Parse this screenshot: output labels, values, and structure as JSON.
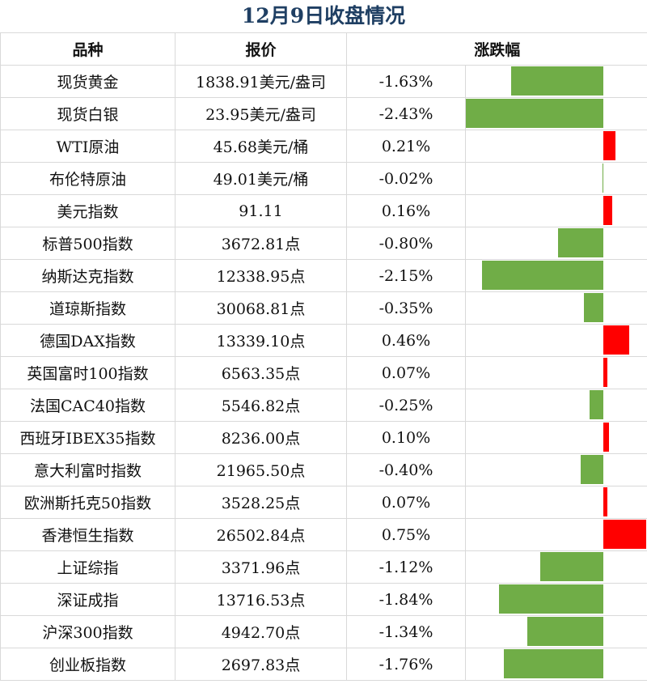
{
  "title": "12月9日收盘情况",
  "headers": [
    "品种",
    "报价",
    "涨跌幅",
    ""
  ],
  "colors": {
    "negative": "#70ad47",
    "positive": "#ff0000",
    "title": "#1f3f63"
  },
  "chart_data": {
    "type": "table",
    "columns": [
      "品种",
      "报价",
      "涨跌幅"
    ],
    "rows": [
      {
        "name": "现货黄金",
        "price": "1838.91美元/盎司",
        "change_label": "-1.63%",
        "change": -1.63
      },
      {
        "name": "现货白银",
        "price": "23.95美元/盎司",
        "change_label": "-2.43%",
        "change": -2.43
      },
      {
        "name": "WTI原油",
        "price": "45.68美元/桶",
        "change_label": "0.21%",
        "change": 0.21
      },
      {
        "name": "布伦特原油",
        "price": "49.01美元/桶",
        "change_label": "-0.02%",
        "change": -0.02
      },
      {
        "name": "美元指数",
        "price": "91.11",
        "change_label": "0.16%",
        "change": 0.16
      },
      {
        "name": "标普500指数",
        "price": "3672.81点",
        "change_label": "-0.80%",
        "change": -0.8
      },
      {
        "name": "纳斯达克指数",
        "price": "12338.95点",
        "change_label": "-2.15%",
        "change": -2.15
      },
      {
        "name": "道琼斯指数",
        "price": "30068.81点",
        "change_label": "-0.35%",
        "change": -0.35
      },
      {
        "name": "德国DAX指数",
        "price": "13339.10点",
        "change_label": "0.46%",
        "change": 0.46
      },
      {
        "name": "英国富时100指数",
        "price": "6563.35点",
        "change_label": "0.07%",
        "change": 0.07
      },
      {
        "name": "法国CAC40指数",
        "price": "5546.82点",
        "change_label": "-0.25%",
        "change": -0.25
      },
      {
        "name": "西班牙IBEX35指数",
        "price": "8236.00点",
        "change_label": "0.10%",
        "change": 0.1
      },
      {
        "name": "意大利富时指数",
        "price": "21965.50点",
        "change_label": "-0.40%",
        "change": -0.4
      },
      {
        "name": "欧洲斯托克50指数",
        "price": "3528.25点",
        "change_label": "0.07%",
        "change": 0.07
      },
      {
        "name": "香港恒生指数",
        "price": "26502.84点",
        "change_label": "0.75%",
        "change": 0.75
      },
      {
        "name": "上证综指",
        "price": "3371.96点",
        "change_label": "-1.12%",
        "change": -1.12
      },
      {
        "name": "深证成指",
        "price": "13716.53点",
        "change_label": "-1.84%",
        "change": -1.84
      },
      {
        "name": "沪深300指数",
        "price": "4942.70点",
        "change_label": "-1.34%",
        "change": -1.34
      },
      {
        "name": "创业板指数",
        "price": "2697.83点",
        "change_label": "-1.76%",
        "change": -1.76
      }
    ]
  }
}
